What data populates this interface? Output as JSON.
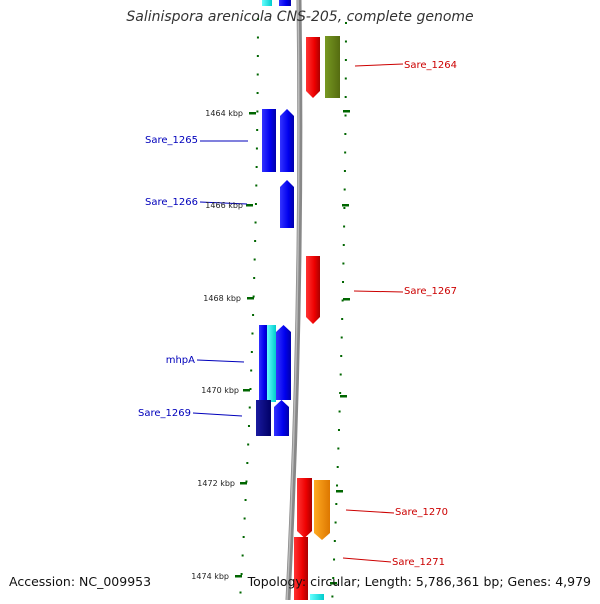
{
  "title": "Salinispora arenicola CNS-205, complete genome",
  "footer": {
    "accession": "Accession: NC_009953",
    "summary": "Topology: circular; Length: 5,786,361 bp; Genes: 4,979"
  },
  "colors": {
    "forward_label": "#cc0000",
    "reverse_label": "#0000bb",
    "tick": "#006600",
    "backbone": "#888888"
  },
  "scale_labels": [
    "1464 kbp",
    "1466 kbp",
    "1468 kbp",
    "1470 kbp",
    "1472 kbp",
    "1474 kbp"
  ],
  "genes": [
    {
      "label": "Sare_1264",
      "strand": "forward",
      "color": "red"
    },
    {
      "label": "Sare_1265",
      "strand": "reverse",
      "color": "blue"
    },
    {
      "label": "Sare_1266",
      "strand": "reverse",
      "color": "blue"
    },
    {
      "label": "Sare_1267",
      "strand": "forward",
      "color": "red"
    },
    {
      "label": "mhpA",
      "strand": "reverse",
      "color": "blue"
    },
    {
      "label": "Sare_1269",
      "strand": "reverse",
      "color": "navy"
    },
    {
      "label": "Sare_1270",
      "strand": "forward",
      "color": "red"
    },
    {
      "label": "Sare_1271",
      "strand": "forward",
      "color": "red"
    }
  ]
}
